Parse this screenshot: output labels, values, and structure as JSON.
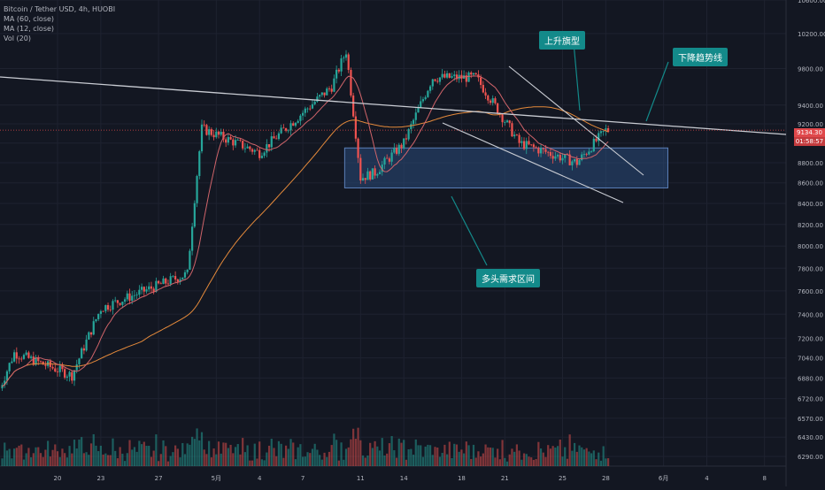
{
  "legend": {
    "symbol": "Bitcoin / Tether USD, 4h, HUOBI",
    "ma60": "MA (60, close)",
    "ma12": "MA (12, close)",
    "vol": "Vol (20)"
  },
  "annotations": {
    "rising_flag": "上升旗型",
    "downtrend_line": "下降趋势线",
    "demand_zone": "多头需求区间"
  },
  "current_price": "9134.30",
  "countdown": "01:58:57",
  "colors": {
    "bg": "#131722",
    "up": "#26a69a",
    "down": "#ef5350",
    "ma60": "#e58a3b",
    "ma12": "#d0646a",
    "zone": "#2a4a7a",
    "callout": "#138a8a",
    "priceline": "#e0484b",
    "trendline": "#c9ccd3"
  },
  "chart_data": {
    "type": "candlestick",
    "title": "Bitcoin / Tether USD, 4h, HUOBI",
    "y_axis": {
      "ticks": [
        "10600.00",
        "10200.00",
        "9800.00",
        "9400.00",
        "9200.00",
        "9000.00",
        "8800.00",
        "8600.00",
        "8400.00",
        "8200.00",
        "8000.00",
        "7800.00",
        "7600.00",
        "7400.00",
        "7200.00",
        "7040.00",
        "6880.00",
        "6720.00",
        "6570.00",
        "6430.00",
        "6290.00"
      ],
      "scale": "log"
    },
    "x_axis": {
      "ticks": [
        "20",
        "23",
        "27",
        "5月",
        "4",
        "7",
        "11",
        "14",
        "18",
        "21",
        "25",
        "28",
        "6月",
        "4",
        "8"
      ]
    },
    "key_points": [
      {
        "date": "Apr 17",
        "close": 7080
      },
      {
        "date": "Apr 21",
        "close": 6900
      },
      {
        "date": "Apr 23",
        "close": 7450
      },
      {
        "date": "Apr 29",
        "close": 7750
      },
      {
        "date": "Apr 30",
        "close": 9150
      },
      {
        "date": "May 3",
        "close": 8900
      },
      {
        "date": "May 8",
        "close": 9600
      },
      {
        "date": "May 9",
        "close": 10000
      },
      {
        "date": "May 10",
        "close": 8650
      },
      {
        "date": "May 11",
        "close": 8700
      },
      {
        "date": "May 13",
        "close": 9000
      },
      {
        "date": "May 15",
        "close": 9700
      },
      {
        "date": "May 18",
        "close": 9700
      },
      {
        "date": "May 21",
        "close": 9000
      },
      {
        "date": "May 25",
        "close": 8800
      },
      {
        "date": "May 27",
        "close": 9134
      }
    ],
    "demand_zone": {
      "low": 8550,
      "high": 8950
    },
    "indicators": [
      "MA 60",
      "MA 12",
      "Vol 20"
    ]
  }
}
